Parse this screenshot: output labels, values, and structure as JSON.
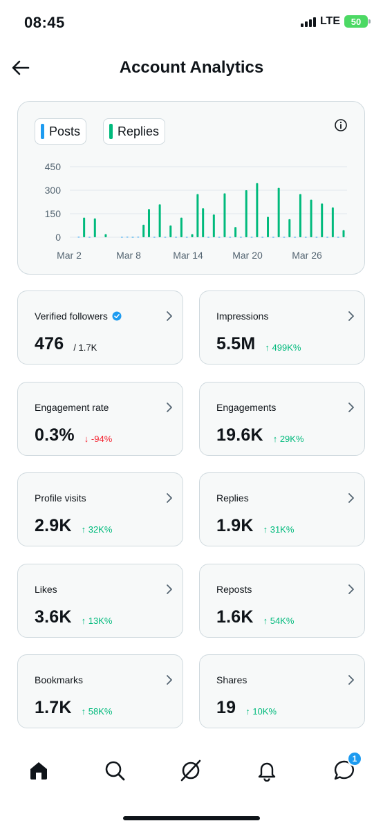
{
  "status_bar": {
    "time": "08:45",
    "network": "LTE",
    "battery": "50"
  },
  "header": {
    "title": "Account Analytics"
  },
  "chart": {
    "legend": [
      {
        "label": "Posts",
        "color": "#1d9bf0"
      },
      {
        "label": "Replies",
        "color": "#00ba7c"
      }
    ]
  },
  "chart_data": {
    "type": "bar",
    "x_tick_labels": [
      "Mar 2",
      "Mar 8",
      "Mar 14",
      "Mar 20",
      "Mar 26"
    ],
    "y_tick_labels": [
      "450",
      "300",
      "150",
      "0"
    ],
    "ylim": [
      0,
      450
    ],
    "grid": true,
    "series": [
      {
        "name": "Replies",
        "color": "#00ba7c",
        "values": [
          0,
          0,
          125,
          0,
          120,
          0,
          20,
          0,
          0,
          0,
          0,
          2,
          0,
          80,
          180,
          0,
          210,
          0,
          75,
          0,
          125,
          0,
          20,
          275,
          185,
          0,
          145,
          0,
          280,
          0,
          65,
          0,
          300,
          0,
          345,
          0,
          130,
          0,
          315,
          0,
          115,
          0,
          275,
          0,
          240,
          0,
          215,
          0,
          190,
          0,
          45
        ]
      },
      {
        "name": "Posts",
        "color": "#1d9bf0",
        "values": [
          0,
          3,
          0,
          2,
          0,
          0,
          0,
          0,
          0,
          2,
          3,
          2,
          3,
          0,
          0,
          2,
          0,
          2,
          0,
          2,
          0,
          2,
          0,
          0,
          0,
          2,
          0,
          2,
          0,
          2,
          0,
          2,
          0,
          2,
          0,
          2,
          0,
          2,
          0,
          2,
          0,
          2,
          0,
          2,
          0,
          2,
          0,
          2,
          0,
          2,
          0
        ]
      }
    ]
  },
  "stats": [
    {
      "label": "Verified followers",
      "value": "476",
      "sub": "/ 1.7K",
      "trend": "none",
      "verified_icon": true
    },
    {
      "label": "Impressions",
      "value": "5.5M",
      "sub": "↑ 499K%",
      "trend": "up"
    },
    {
      "label": "Engagement rate",
      "value": "0.3%",
      "sub": "↓ -94%",
      "trend": "down"
    },
    {
      "label": "Engagements",
      "value": "19.6K",
      "sub": "↑ 29K%",
      "trend": "up"
    },
    {
      "label": "Profile visits",
      "value": "2.9K",
      "sub": "↑ 32K%",
      "trend": "up"
    },
    {
      "label": "Replies",
      "value": "1.9K",
      "sub": "↑ 31K%",
      "trend": "up"
    },
    {
      "label": "Likes",
      "value": "3.6K",
      "sub": "↑ 13K%",
      "trend": "up"
    },
    {
      "label": "Reposts",
      "value": "1.6K",
      "sub": "↑ 54K%",
      "trend": "up"
    },
    {
      "label": "Bookmarks",
      "value": "1.7K",
      "sub": "↑ 58K%",
      "trend": "up"
    },
    {
      "label": "Shares",
      "value": "19",
      "sub": "↑ 10K%",
      "trend": "up"
    }
  ],
  "tabbar": {
    "items": [
      "home-icon",
      "search-icon",
      "grok-icon",
      "bell-icon",
      "messages-icon"
    ],
    "messages_badge": "1"
  }
}
